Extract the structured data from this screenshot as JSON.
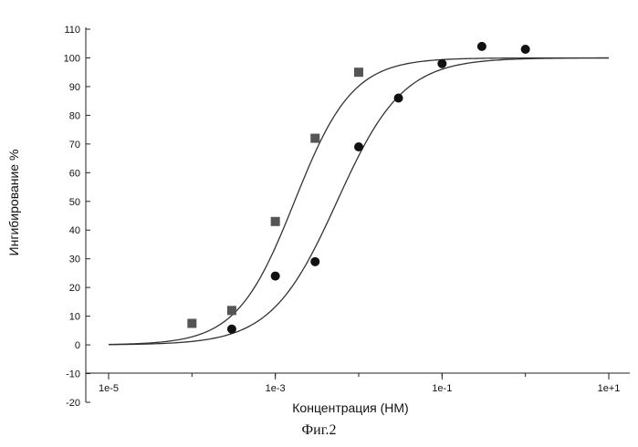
{
  "caption": "Фиг.2",
  "chart_data": {
    "type": "scatter",
    "xscale": "log",
    "xlabel": "Концентрация (НМ)",
    "ylabel": "Ингибирование %",
    "xlim": [
      1e-05,
      10
    ],
    "ylim": [
      -20,
      110
    ],
    "x_ticks": [
      1e-05,
      0.001,
      0.1,
      10
    ],
    "x_tick_labels": [
      "1e-5",
      "1e-3",
      "1e-1",
      "1e+1"
    ],
    "y_ticks": [
      -20,
      -10,
      0,
      10,
      20,
      30,
      40,
      50,
      60,
      70,
      80,
      90,
      100,
      110
    ],
    "grid": false,
    "series": [
      {
        "marker": "square",
        "color": "#555555",
        "x": [
          0.0001,
          0.0003,
          0.001,
          0.003,
          0.01
        ],
        "y": [
          7.5,
          12,
          43,
          72,
          95
        ],
        "fit": {
          "bottom": 0,
          "top": 100,
          "ec50": 0.0017,
          "hill": 1.25
        }
      },
      {
        "marker": "circle",
        "color": "#111111",
        "x": [
          0.0003,
          0.001,
          0.003,
          0.01,
          0.03,
          0.1,
          0.3,
          1
        ],
        "y": [
          5.5,
          24,
          29,
          69,
          86,
          98,
          104,
          103
        ],
        "fit": {
          "bottom": 0,
          "top": 100,
          "ec50": 0.0055,
          "hill": 1.1
        }
      }
    ]
  }
}
